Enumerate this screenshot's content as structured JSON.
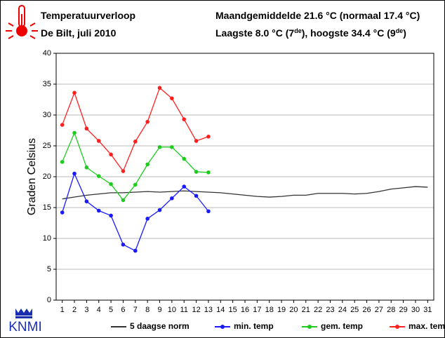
{
  "header": {
    "title": "Temperatuurverloop",
    "subtitle": "De Bilt, juli 2010",
    "stats_line1": "Maandgemiddelde 21.6 °C (normaal 17.4 °C)",
    "stats_line2": [
      "Laagste 8.0 °C (7",
      "de",
      "), hoogste 34.4 °C (9",
      "de",
      ")"
    ],
    "logo": "KNMI"
  },
  "chart_data": {
    "type": "line",
    "y_label": "Graden Celsius",
    "x": [
      1,
      2,
      3,
      4,
      5,
      6,
      7,
      8,
      9,
      10,
      11,
      12,
      13,
      14,
      15,
      16,
      17,
      18,
      19,
      20,
      21,
      22,
      23,
      24,
      25,
      26,
      27,
      28,
      29,
      30,
      31
    ],
    "xlim": [
      0.5,
      31.5
    ],
    "xticks": [
      1,
      2,
      3,
      4,
      5,
      6,
      7,
      8,
      9,
      10,
      11,
      12,
      13,
      14,
      15,
      16,
      17,
      18,
      19,
      20,
      21,
      22,
      23,
      24,
      25,
      26,
      27,
      28,
      29,
      30,
      31
    ],
    "ylim": [
      0,
      40
    ],
    "yticks": [
      0,
      5,
      10,
      15,
      20,
      25,
      30,
      35,
      40
    ],
    "grid": true,
    "series": [
      {
        "name": "5 daagse norm",
        "color": "#333333",
        "markers": false,
        "values": [
          16.4,
          16.7,
          17.0,
          17.2,
          17.4,
          17.4,
          17.5,
          17.6,
          17.5,
          17.6,
          17.7,
          17.6,
          17.5,
          17.4,
          17.2,
          17.0,
          16.8,
          16.7,
          16.8,
          17.0,
          17.0,
          17.3,
          17.3,
          17.3,
          17.2,
          17.3,
          17.6,
          18.0,
          18.2,
          18.4,
          18.3
        ]
      },
      {
        "name": "min. temp",
        "color": "#1a1aff",
        "markers": true,
        "values": [
          14.2,
          20.5,
          16.0,
          14.5,
          13.7,
          9.0,
          8.0,
          13.2,
          14.6,
          16.5,
          18.4,
          16.9,
          14.4,
          null,
          null,
          null,
          null,
          null,
          null,
          null,
          null,
          null,
          null,
          null,
          null,
          null,
          null,
          null,
          null,
          null,
          null
        ]
      },
      {
        "name": "gem. temp",
        "color": "#1ecc1e",
        "markers": true,
        "values": [
          22.4,
          27.1,
          21.5,
          20.1,
          18.8,
          16.2,
          18.7,
          22.0,
          24.8,
          24.8,
          22.9,
          20.8,
          20.7,
          null,
          null,
          null,
          null,
          null,
          null,
          null,
          null,
          null,
          null,
          null,
          null,
          null,
          null,
          null,
          null,
          null,
          null
        ]
      },
      {
        "name": "max. temp",
        "color": "#ff2020",
        "markers": true,
        "values": [
          28.4,
          33.6,
          27.8,
          25.8,
          23.6,
          20.9,
          25.7,
          28.9,
          34.4,
          32.7,
          29.3,
          25.8,
          26.5,
          null,
          null,
          null,
          null,
          null,
          null,
          null,
          null,
          null,
          null,
          null,
          null,
          null,
          null,
          null,
          null,
          null,
          null
        ]
      }
    ]
  }
}
